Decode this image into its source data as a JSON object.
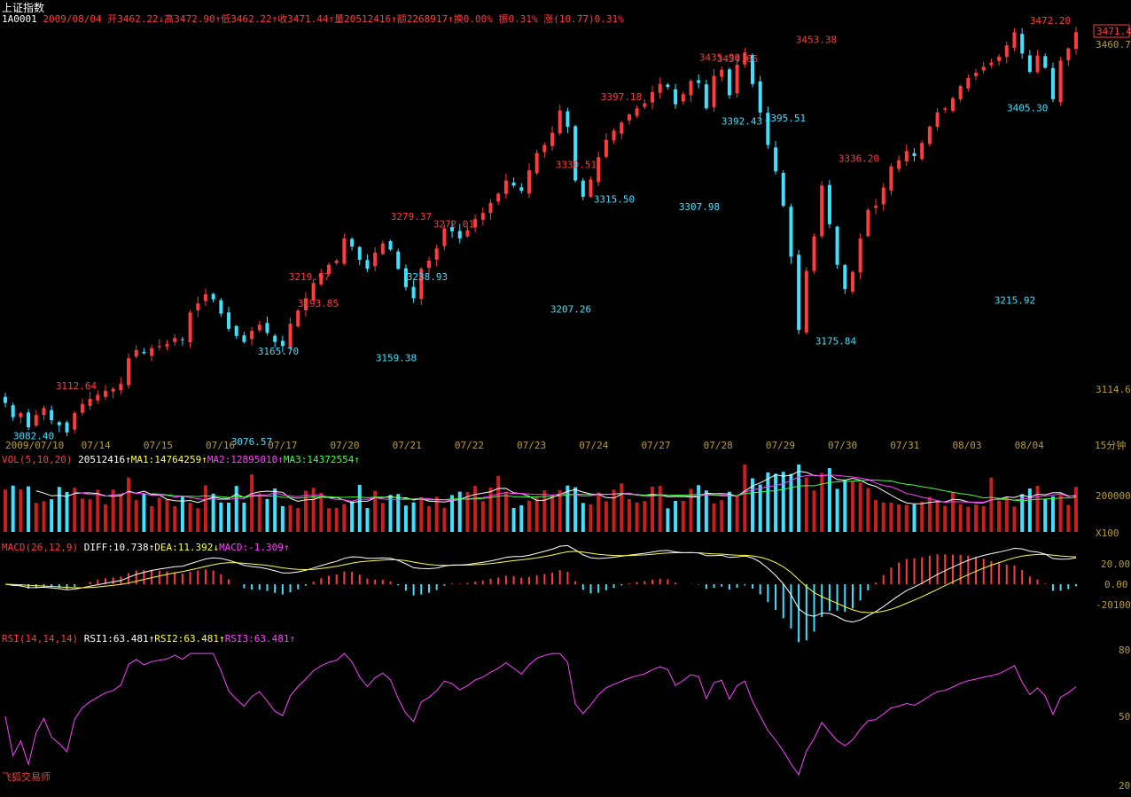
{
  "header": {
    "title": "上证指数",
    "code": "1A0001",
    "date": "2009/08/04",
    "open_label": "开3462.22↓",
    "high_label": "高3472.90↑",
    "low_label": "低3462.22↑",
    "close_label": "收3471.44↑",
    "volume_label": "量20512416↑",
    "amount_label": "额2268917↑",
    "turnover_label": "换0.00%",
    "amplitude_label": "振0.31%",
    "change_label": "涨(10.77)0.31%"
  },
  "price_axis": {
    "current_price_tag": "3471.4",
    "labels": [
      "3460.7",
      "3114.6"
    ]
  },
  "time_axis": {
    "period_label": "15分钟",
    "labels": [
      "2009/07/10",
      "07/14",
      "07/15",
      "07/16",
      "07/17",
      "07/20",
      "07/21",
      "07/22",
      "07/23",
      "07/24",
      "07/27",
      "07/28",
      "07/29",
      "07/30",
      "07/31",
      "08/03",
      "08/04"
    ]
  },
  "vol_panel": {
    "label": "VOL(5,10,20)",
    "value": "20512416↑",
    "ma1": "MA1:14764259↑",
    "ma2": "MA2:12895010↑",
    "ma3": "MA3:14372554↑",
    "axis_labels": [
      "200000",
      "X100"
    ]
  },
  "macd_panel": {
    "label": "MACD(26,12,9)",
    "diff": "DIFF:10.738↑",
    "dea": "DEA:11.392↓",
    "macd": "MACD:-1.309↑",
    "axis_labels": [
      "20.00",
      "0.00",
      "-20100"
    ]
  },
  "rsi_panel": {
    "label": "RSI(14,14,14)",
    "rsi1": "RSI1:63.481↑",
    "rsi2": "RSI2:63.481↑",
    "rsi3": "RSI3:63.481↑",
    "axis_labels": [
      "80",
      "50",
      "20"
    ]
  },
  "brand": "飞狐交易师",
  "colors": {
    "up": "#ff3b3b",
    "down": "#40e0ff",
    "ma1": "#ffffff",
    "ma2": "#ff40ff",
    "ma3": "#40ff40",
    "dea": "#ffff40",
    "rsi": "#ff40ff",
    "axis_text": "#b89a3c"
  },
  "chart_data": {
    "type": "candlestick",
    "price_range": [
      3075,
      3480
    ],
    "price_markers": [
      {
        "label": "3082.40",
        "day": 0,
        "value": 3082.4,
        "kind": "low"
      },
      {
        "label": "3112.64",
        "day": 0,
        "value": 3112.64,
        "kind": "high"
      },
      {
        "label": "3076.57",
        "day": 1,
        "value": 3076.57,
        "kind": "low"
      },
      {
        "label": "3219.97",
        "day": 3,
        "value": 3219.97,
        "kind": "high"
      },
      {
        "label": "3165.70",
        "day": 3,
        "value": 3165.7,
        "kind": "low"
      },
      {
        "label": "3193.85",
        "day": 4,
        "value": 3193.85,
        "kind": "high"
      },
      {
        "label": "3159.38",
        "day": 4,
        "value": 3159.38,
        "kind": "low"
      },
      {
        "label": "3279.37",
        "day": 6,
        "value": 3279.37,
        "kind": "high"
      },
      {
        "label": "3238.93",
        "day": 6,
        "value": 3238.93,
        "kind": "low"
      },
      {
        "label": "3272.01",
        "day": 6,
        "value": 3272.01,
        "kind": "high"
      },
      {
        "label": "3207.26",
        "day": 6,
        "value": 3207.26,
        "kind": "low"
      },
      {
        "label": "3330.51",
        "day": 8,
        "value": 3330.51,
        "kind": "high"
      },
      {
        "label": "3315.50",
        "day": 8,
        "value": 3315.5,
        "kind": "low"
      },
      {
        "label": "3397.18",
        "day": 9,
        "value": 3397.18,
        "kind": "high"
      },
      {
        "label": "3307.98",
        "day": 9,
        "value": 3307.98,
        "kind": "low"
      },
      {
        "label": "3435.90",
        "day": 11,
        "value": 3435.9,
        "kind": "high"
      },
      {
        "label": "3392.43",
        "day": 11,
        "value": 3392.43,
        "kind": "low"
      },
      {
        "label": "3434.66",
        "day": 11,
        "value": 3434.66,
        "kind": "high"
      },
      {
        "label": "3395.51",
        "day": 11,
        "value": 3395.51,
        "kind": "low"
      },
      {
        "label": "3453.38",
        "day": 12,
        "value": 3453.38,
        "kind": "high"
      },
      {
        "label": "3175.84",
        "day": 12,
        "value": 3175.84,
        "kind": "low"
      },
      {
        "label": "3336.20",
        "day": 13,
        "value": 3336.2,
        "kind": "high"
      },
      {
        "label": "3215.92",
        "day": 13,
        "value": 3215.92,
        "kind": "low"
      },
      {
        "label": "3472.20",
        "day": 16,
        "value": 3472.2,
        "kind": "high"
      },
      {
        "label": "3405.30",
        "day": 16,
        "value": 3405.3,
        "kind": "low"
      }
    ],
    "close_path": [
      3106,
      3092,
      3096,
      3082,
      3094,
      3101,
      3089,
      3084,
      3077,
      3096,
      3105,
      3110,
      3114,
      3118,
      3120,
      3125,
      3150,
      3158,
      3155,
      3160,
      3162,
      3164,
      3170,
      3168,
      3195,
      3204,
      3213,
      3208,
      3194,
      3179,
      3172,
      3166,
      3177,
      3183,
      3175,
      3166,
      3162,
      3184,
      3197,
      3209,
      3224,
      3234,
      3242,
      3246,
      3268,
      3260,
      3247,
      3238,
      3254,
      3263,
      3257,
      3238,
      3220,
      3209,
      3238,
      3246,
      3258,
      3278,
      3275,
      3268,
      3276,
      3287,
      3293,
      3303,
      3312,
      3325,
      3320,
      3315,
      3335,
      3352,
      3360,
      3372,
      3394,
      3378,
      3325,
      3309,
      3326,
      3348,
      3365,
      3374,
      3382,
      3390,
      3396,
      3401,
      3412,
      3420,
      3417,
      3400,
      3410,
      3423,
      3421,
      3396,
      3428,
      3434,
      3409,
      3439,
      3451,
      3420,
      3392,
      3360,
      3334,
      3300,
      3250,
      3178,
      3236,
      3270,
      3320,
      3282,
      3242,
      3218,
      3235,
      3268,
      3296,
      3300,
      3318,
      3339,
      3345,
      3354,
      3349,
      3362,
      3378,
      3392,
      3396,
      3406,
      3418,
      3426,
      3431,
      3437,
      3441,
      3447,
      3458,
      3471,
      3450,
      3432,
      3448,
      3436,
      3405,
      3443,
      3455,
      3471
    ],
    "rsi_range": [
      20,
      80
    ],
    "macd_range": [
      -20,
      20
    ]
  }
}
